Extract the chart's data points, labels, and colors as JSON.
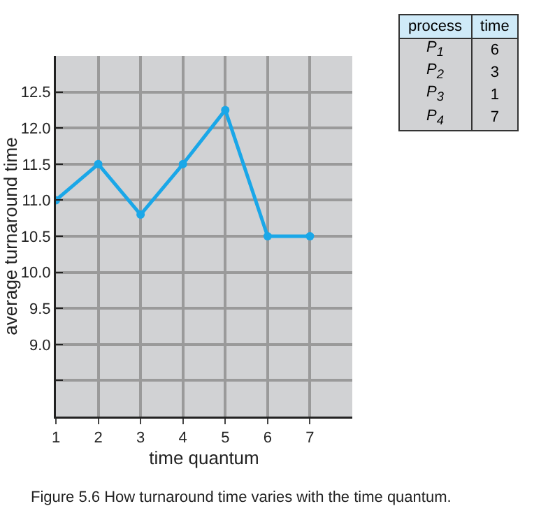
{
  "chart_data": {
    "type": "line",
    "xlabel": "time quantum",
    "ylabel": "average turnaround time",
    "x": [
      1,
      2,
      3,
      4,
      5,
      6,
      7
    ],
    "series": [
      {
        "color": "#1aa7e8",
        "values": [
          11.0,
          11.5,
          10.8,
          11.5,
          12.25,
          10.5,
          10.5
        ]
      }
    ],
    "xlim": [
      1,
      8
    ],
    "xticks": [
      1,
      2,
      3,
      4,
      5,
      6,
      7
    ],
    "ylim": [
      8,
      13
    ],
    "yticks": [
      {
        "value": 8.5,
        "label": null
      },
      {
        "value": 9,
        "label": "9.0"
      },
      9.5,
      {
        "value": 10,
        "label": "10.0"
      },
      10.5,
      {
        "value": 11,
        "label": "11.0"
      },
      11.5,
      {
        "value": 12,
        "label": "12.0"
      },
      12.5
    ],
    "grid": true,
    "marker": "circle",
    "line_style": "solid",
    "annotations": [
      "process",
      "time",
      "P$_{1}$",
      "6",
      "P$_{2}$",
      "3",
      "P$_{3}$",
      "1",
      "P$_{4}$",
      "7",
      "Figure 5.6 How turnaround time varies with the time quantum."
    ]
  }
}
